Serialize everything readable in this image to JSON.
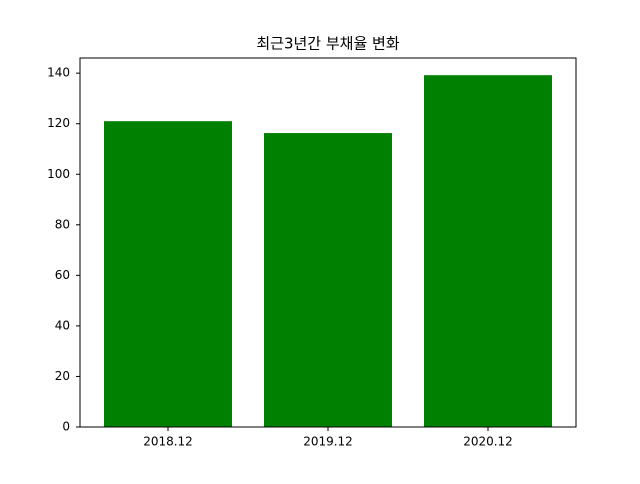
{
  "chart_data": {
    "type": "bar",
    "title": "최근3년간 부채율 변화",
    "categories": [
      "2018.12",
      "2019.12",
      "2020.12"
    ],
    "values": [
      121.0,
      116.3,
      139.2
    ],
    "color": "#008000",
    "ylim": [
      0,
      146
    ],
    "yticks": [
      0,
      20,
      40,
      60,
      80,
      100,
      120,
      140
    ],
    "grid": false
  }
}
